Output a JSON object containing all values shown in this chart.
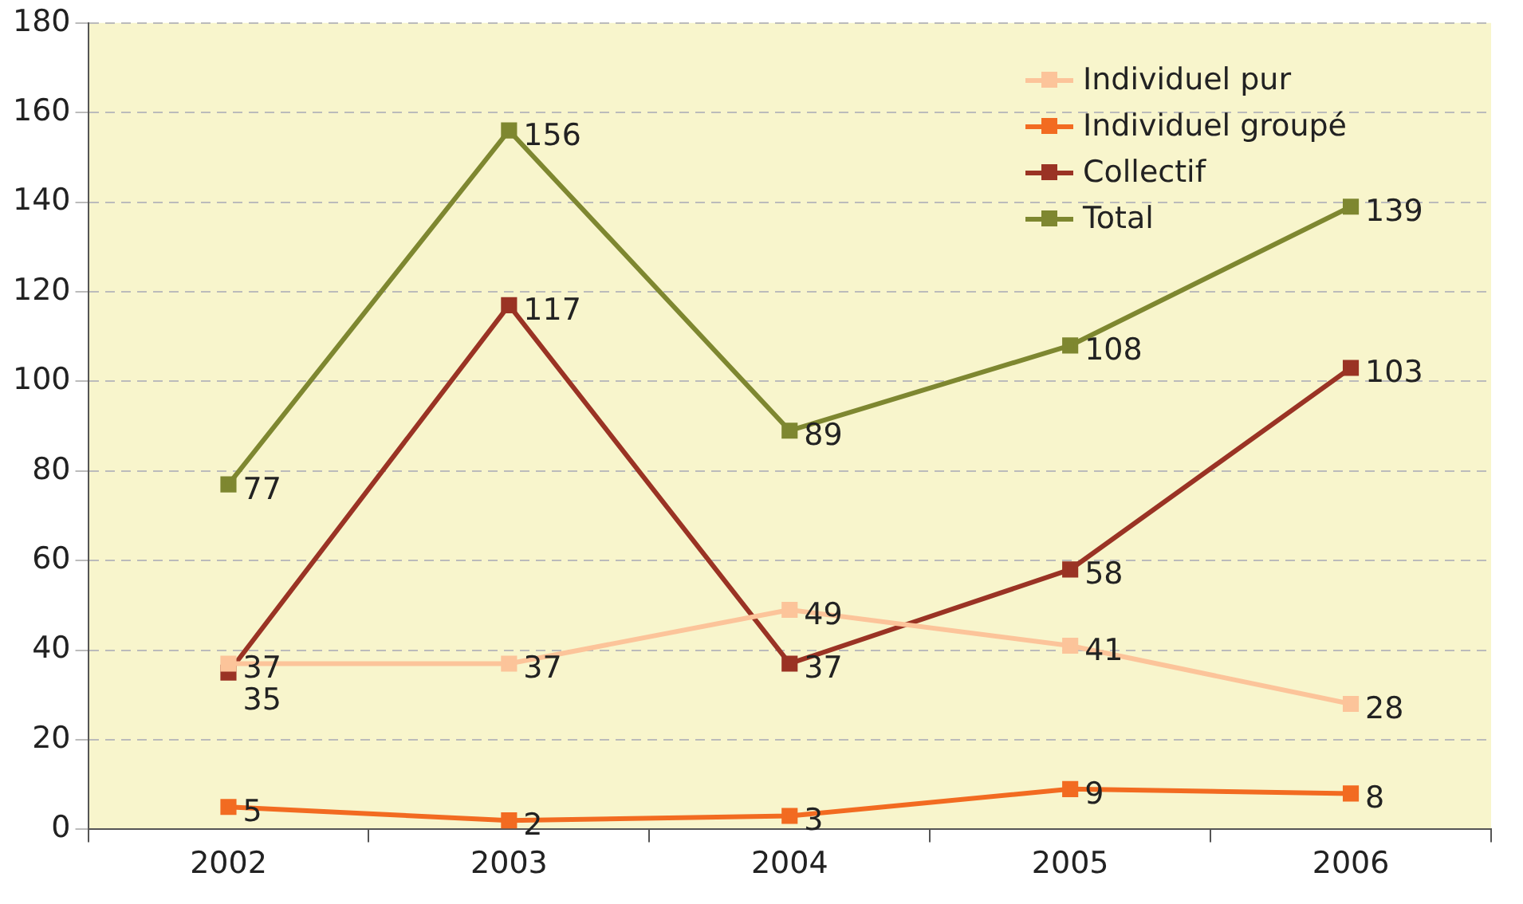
{
  "chart_data": {
    "type": "line",
    "categories": [
      "2002",
      "2003",
      "2004",
      "2005",
      "2006"
    ],
    "series": [
      {
        "name": "Individuel pur",
        "color": "#fcc49a",
        "values": [
          37,
          37,
          49,
          41,
          28
        ]
      },
      {
        "name": "Individuel groupé",
        "color": "#f26b21",
        "values": [
          5,
          2,
          3,
          9,
          8
        ]
      },
      {
        "name": "Collectif",
        "color": "#9a3324",
        "values": [
          35,
          117,
          37,
          58,
          103
        ]
      },
      {
        "name": "Total",
        "color": "#7e8730",
        "values": [
          77,
          156,
          89,
          108,
          139
        ]
      }
    ],
    "ylim": [
      0,
      180
    ],
    "yticks": [
      0,
      20,
      40,
      60,
      80,
      100,
      120,
      140,
      160,
      180
    ],
    "grid": "y",
    "legend": "top right",
    "marker": "square",
    "line_style": "solid",
    "data_labels": true
  }
}
